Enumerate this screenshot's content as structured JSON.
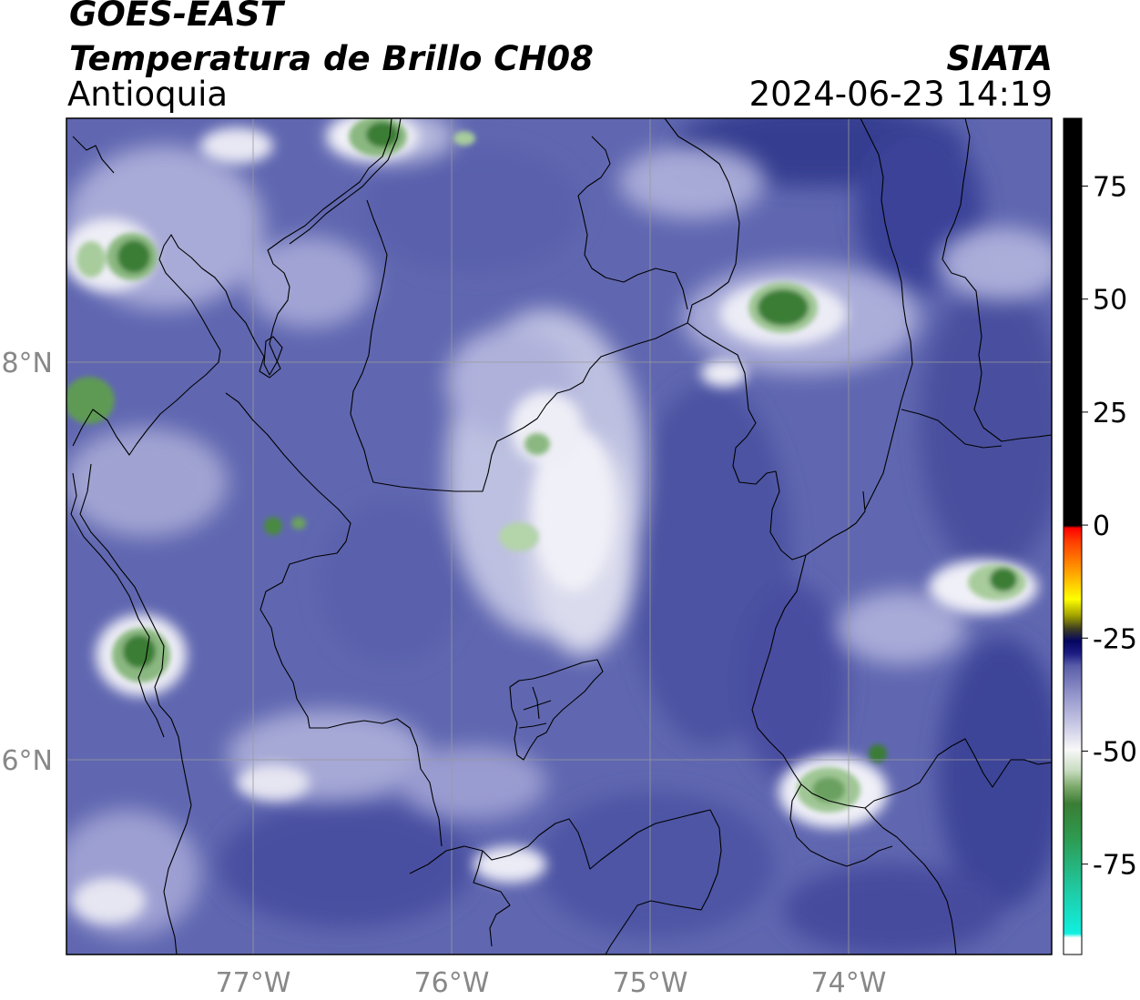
{
  "header": {
    "satellite": "GOES-EAST",
    "product": "Temperatura de Brillo CH08",
    "region": "Antioquia",
    "organization": "SIATA",
    "datetime": "2024-06-23 14:19"
  },
  "map": {
    "lon_range": [
      -77.95,
      -73.0
    ],
    "lat_range": [
      5.05,
      9.25
    ],
    "lon_ticks": [
      {
        "value": -77,
        "label": "77°W"
      },
      {
        "value": -76,
        "label": "76°W"
      },
      {
        "value": -75,
        "label": "75°W"
      },
      {
        "value": -74,
        "label": "74°W"
      }
    ],
    "lat_ticks": [
      {
        "value": 8,
        "label": "8°N"
      },
      {
        "value": 6,
        "label": "6°N"
      }
    ],
    "gridlines": true
  },
  "colorbar": {
    "range": [
      -95,
      90
    ],
    "ticks": [
      {
        "value": 75,
        "label": "75"
      },
      {
        "value": 50,
        "label": "50"
      },
      {
        "value": 25,
        "label": "25"
      },
      {
        "value": 0,
        "label": "0"
      },
      {
        "value": -25,
        "label": "-25"
      },
      {
        "value": -50,
        "label": "-50"
      },
      {
        "value": -75,
        "label": "-75"
      }
    ]
  },
  "colors": {
    "background": "#6067b0",
    "cold_cloud": "#3a7d34",
    "white_cloud": "#f4f4f8",
    "dark_band": "#3a4096",
    "coast_line": "#000000",
    "grid_line": "#9a9a9a"
  }
}
